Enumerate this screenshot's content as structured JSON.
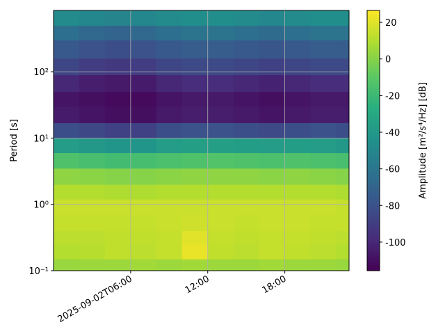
{
  "chart_data": {
    "type": "heatmap",
    "ylabel": "Period [s]",
    "colorbar_label": "Amplitude [m²/s⁴/Hz] [dB]",
    "colormap": "viridis",
    "ylog": true,
    "grid": true,
    "xlim": [
      "2025-09-02T00:00",
      "2025-09-02T23:00"
    ],
    "xticks": [
      {
        "value": "2025-09-02T06:00",
        "label": "2025-09-02T06:00"
      },
      {
        "value": "2025-09-02T12:00",
        "label": "12:00"
      },
      {
        "value": "2025-09-02T18:00",
        "label": "18:00"
      }
    ],
    "ylim": [
      0.1,
      840
    ],
    "yticks": [
      {
        "value": 0.1,
        "label": "10⁻¹"
      },
      {
        "value": 1,
        "label": "10⁰"
      },
      {
        "value": 10,
        "label": "10¹"
      },
      {
        "value": 100,
        "label": "10²"
      }
    ],
    "clim": [
      -115.6,
      26.5
    ],
    "cticks": [
      -100,
      -80,
      -60,
      -40,
      -20,
      0,
      20
    ],
    "xbins": [
      "2025-09-02T00:00",
      "2025-09-02T02:00",
      "2025-09-02T04:00",
      "2025-09-02T06:00",
      "2025-09-02T08:00",
      "2025-09-02T10:00",
      "2025-09-02T12:00",
      "2025-09-02T14:00",
      "2025-09-02T16:00",
      "2025-09-02T18:00",
      "2025-09-02T20:00",
      "2025-09-02T22:00",
      "2025-09-02T23:00"
    ],
    "ybins": [
      0.1,
      0.15,
      0.25,
      0.4,
      0.7,
      1.2,
      2,
      3.5,
      6,
      10,
      17,
      30,
      50,
      90,
      160,
      300,
      500,
      840
    ],
    "z": [
      [
        4,
        5,
        5,
        6,
        5,
        6,
        5,
        5,
        6,
        5,
        5,
        4
      ],
      [
        10,
        11,
        13,
        12,
        14,
        22,
        13,
        12,
        14,
        13,
        12,
        10
      ],
      [
        12,
        12,
        13,
        13,
        14,
        20,
        14,
        13,
        14,
        14,
        13,
        12
      ],
      [
        14,
        14,
        14,
        14,
        15,
        16,
        15,
        14,
        15,
        15,
        14,
        14
      ],
      [
        15,
        15,
        15,
        15,
        15,
        15,
        15,
        15,
        15,
        15,
        15,
        14
      ],
      [
        10,
        10,
        9,
        9,
        10,
        10,
        10,
        10,
        10,
        10,
        10,
        9
      ],
      [
        2,
        1,
        0,
        0,
        1,
        2,
        2,
        2,
        1,
        2,
        1,
        0
      ],
      [
        -14,
        -16,
        -18,
        -17,
        -15,
        -14,
        -13,
        -14,
        -15,
        -14,
        -15,
        -16
      ],
      [
        -38,
        -40,
        -42,
        -42,
        -38,
        -36,
        -36,
        -37,
        -38,
        -37,
        -38,
        -40
      ],
      [
        -82,
        -85,
        -88,
        -88,
        -82,
        -80,
        -80,
        -82,
        -84,
        -82,
        -80,
        -82
      ],
      [
        -105,
        -108,
        -110,
        -110,
        -106,
        -104,
        -104,
        -106,
        -108,
        -106,
        -104,
        -104
      ],
      [
        -108,
        -110,
        -112,
        -112,
        -108,
        -106,
        -106,
        -108,
        -110,
        -108,
        -106,
        -106
      ],
      [
        -100,
        -104,
        -106,
        -105,
        -100,
        -98,
        -98,
        -100,
        -102,
        -100,
        -98,
        -98
      ],
      [
        -86,
        -90,
        -92,
        -90,
        -86,
        -84,
        -84,
        -86,
        -88,
        -86,
        -84,
        -84
      ],
      [
        -76,
        -80,
        -82,
        -80,
        -76,
        -74,
        -74,
        -76,
        -78,
        -76,
        -74,
        -74
      ],
      [
        -64,
        -68,
        -70,
        -68,
        -64,
        -62,
        -62,
        -64,
        -66,
        -64,
        -62,
        -62
      ],
      [
        -48,
        -50,
        -52,
        -50,
        -48,
        -46,
        -46,
        -48,
        -50,
        -48,
        -46,
        -46
      ]
    ]
  }
}
